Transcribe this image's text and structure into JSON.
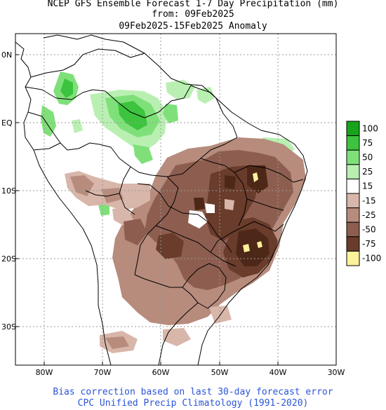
{
  "header": {
    "line1": "NCEP GFS Ensemble Forecast 1-7 Day Precipitation (mm)",
    "line2": "from: 09Feb2025",
    "line3": "09Feb2025-15Feb2025 Anomaly"
  },
  "map": {
    "region": "South America",
    "lat_labels": [
      "0N",
      "EQ",
      "10S",
      "20S",
      "30S"
    ],
    "lon_labels": [
      "80W",
      "70W",
      "60W",
      "50W",
      "40W",
      "30W"
    ],
    "grid": "dotted",
    "colors": {
      "wet_strong": "#17a41b",
      "wet_mid": "#3dc43f",
      "wet_light": "#7fe07a",
      "wet_faint": "#b9f0b2",
      "dry_light": "#d8b6aa",
      "dry_mid": "#b78c7d",
      "dry_strong": "#8d5e4f",
      "dry_deep": "#6a3c2c",
      "dry_extreme": "#4d2818",
      "very_dry": "#fbf29a",
      "border": "#000000",
      "grid": "#9a9a9a"
    }
  },
  "legend": {
    "items": [
      {
        "label": "100",
        "color": "#17a41b"
      },
      {
        "label": "75",
        "color": "#3dc43f"
      },
      {
        "label": "50",
        "color": "#7fe07a"
      },
      {
        "label": "25",
        "color": "#b9f0b2"
      },
      {
        "label": "15",
        "color": "#ffffff"
      },
      {
        "label": "-15",
        "color": "#d8b6aa"
      },
      {
        "label": "-25",
        "color": "#b78c7d"
      },
      {
        "label": "-50",
        "color": "#8d5e4f"
      },
      {
        "label": "-75",
        "color": "#6a3c2c"
      },
      {
        "label": "-100",
        "color": "#fbf29a"
      }
    ]
  },
  "footer": {
    "line1": "Bias correction based on last 30-day forecast error",
    "line2": "CPC Unified Precip Climatology (1991-2020)"
  }
}
